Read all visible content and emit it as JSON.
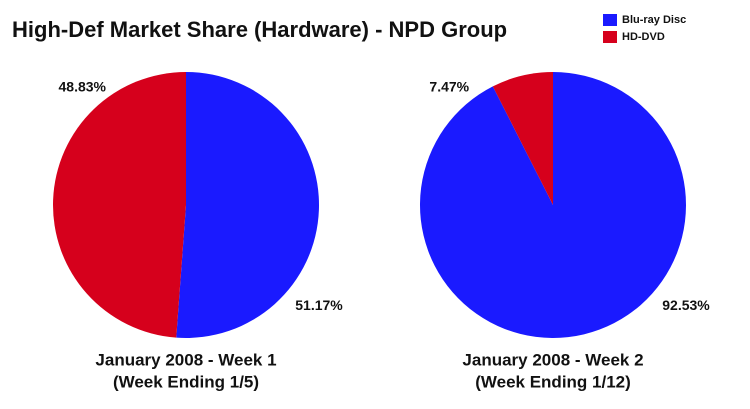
{
  "title": "High-Def Market Share (Hardware) - NPD Group",
  "chart_data": [
    {
      "type": "pie",
      "title": "January 2008 - Week 1",
      "subtitle": "(Week Ending 1/5)",
      "categories": [
        "Blu-ray Disc",
        "HD-DVD"
      ],
      "values": [
        51.17,
        48.83
      ],
      "value_labels": [
        "51.17%",
        "48.83%"
      ],
      "colors": [
        "#1a1aff",
        "#d6001c"
      ]
    },
    {
      "type": "pie",
      "title": "January 2008 - Week 2",
      "subtitle": "(Week Ending 1/12)",
      "categories": [
        "Blu-ray Disc",
        "HD-DVD"
      ],
      "values": [
        92.53,
        7.47
      ],
      "value_labels": [
        "92.53%",
        "7.47%"
      ],
      "colors": [
        "#1a1aff",
        "#d6001c"
      ]
    }
  ]
}
